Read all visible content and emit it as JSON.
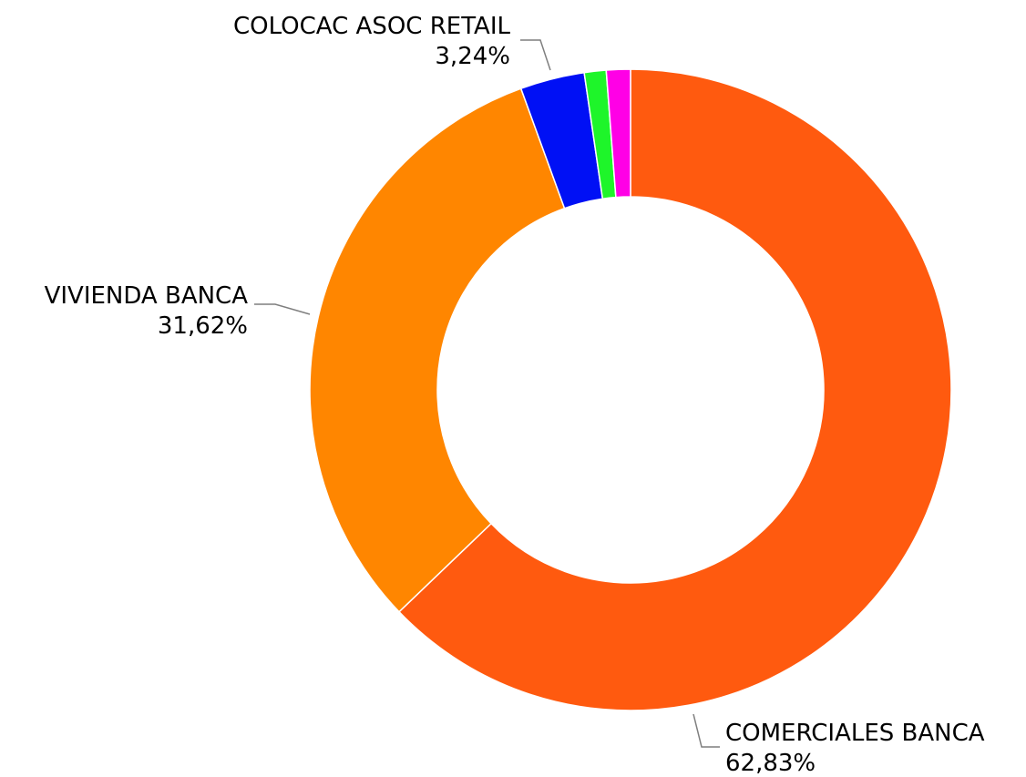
{
  "chart_data": {
    "type": "pie",
    "variant": "donut",
    "title": "",
    "legend": "none",
    "slices": [
      {
        "label": "COMERCIALES BANCA",
        "value": 62.83,
        "value_label": "62,83%",
        "color": "#FF5A0F",
        "labeled": true
      },
      {
        "label": "VIVIENDA BANCA",
        "value": 31.62,
        "value_label": "31,62%",
        "color": "#FF8600",
        "labeled": true
      },
      {
        "label": "COLOCAC ASOC RETAIL",
        "value": 3.24,
        "value_label": "3,24%",
        "color": "#0010F5",
        "labeled": true
      },
      {
        "label": "",
        "value": 1.1,
        "value_label": "",
        "color": "#1EF52A",
        "labeled": false
      },
      {
        "label": "",
        "value": 1.21,
        "value_label": "",
        "color": "#FF00E6",
        "labeled": false
      }
    ]
  }
}
